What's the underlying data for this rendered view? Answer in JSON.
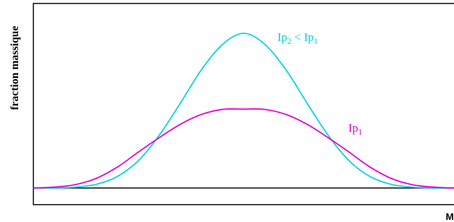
{
  "chart_data": {
    "type": "line",
    "xlabel": "M",
    "ylabel": "fraction massique",
    "xlim": [
      0,
      10
    ],
    "ylim": [
      0,
      1
    ],
    "grid": false,
    "series": [
      {
        "name": "Ip₂ < Ip₁",
        "name_main": "Ip",
        "name_sub": "2",
        "name_rest": " < Ip",
        "name_sub2": "1",
        "color": "#00d6dc",
        "x": [
          0,
          0.5,
          1,
          1.5,
          2,
          2.5,
          3,
          3.5,
          4,
          4.5,
          5,
          5.5,
          6,
          6.5,
          7,
          7.5,
          8,
          8.5,
          9,
          9.5,
          10
        ],
        "values": [
          0.0,
          0.001,
          0.006,
          0.024,
          0.075,
          0.178,
          0.344,
          0.551,
          0.766,
          0.929,
          1.0,
          0.929,
          0.766,
          0.551,
          0.344,
          0.178,
          0.075,
          0.024,
          0.006,
          0.001,
          0.0
        ]
      },
      {
        "name": "Ip₁",
        "name_main": "Ip",
        "name_sub": "1",
        "color": "#e000d8",
        "x": [
          0,
          0.5,
          1,
          1.5,
          2,
          2.5,
          3,
          3.5,
          4,
          4.5,
          5,
          5.5,
          6,
          6.5,
          7,
          7.5,
          8,
          8.5,
          9,
          9.5,
          10
        ],
        "values": [
          0.0,
          0.006,
          0.022,
          0.063,
          0.136,
          0.233,
          0.327,
          0.413,
          0.476,
          0.508,
          0.51,
          0.508,
          0.476,
          0.413,
          0.327,
          0.233,
          0.136,
          0.063,
          0.022,
          0.006,
          0.0
        ]
      }
    ]
  }
}
